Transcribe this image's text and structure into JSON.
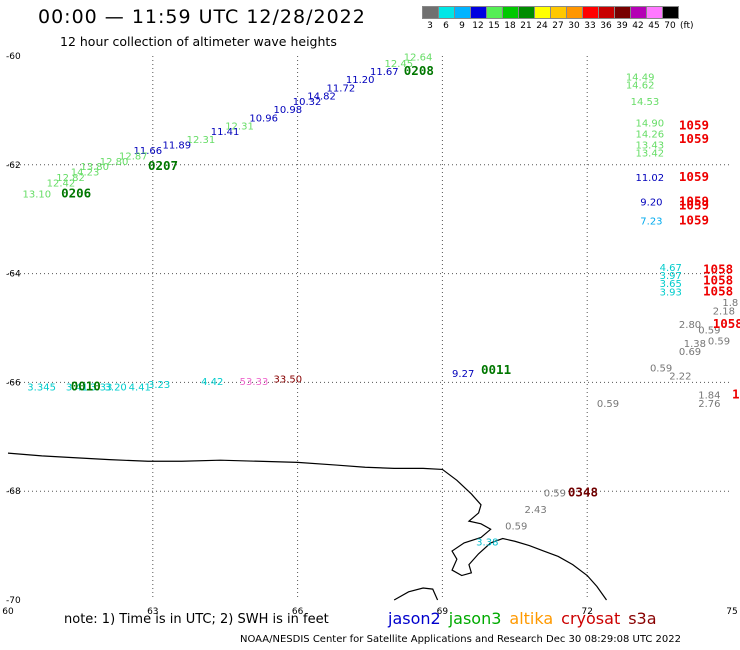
{
  "header": {
    "title": "00:00 — 11:59 UTC 12/28/2022",
    "subtitle": "12 hour collection of altimeter wave heights"
  },
  "colorbar": {
    "labels": [
      "3",
      "6",
      "9",
      "12",
      "15",
      "18",
      "21",
      "24",
      "27",
      "30",
      "33",
      "36",
      "39",
      "42",
      "45",
      "70"
    ],
    "unit": "(ft)",
    "colors": [
      "#707070",
      "#00e6e6",
      "#00b4ff",
      "#0000e0",
      "#55ee55",
      "#00c800",
      "#008c00",
      "#ffff00",
      "#ffc800",
      "#ff9600",
      "#ff0000",
      "#c80000",
      "#780000",
      "#b400b4",
      "#ff78ff",
      "#000000"
    ]
  },
  "map": {
    "lon_ticks": [
      "60",
      "63",
      "66",
      "69",
      "72",
      "75"
    ],
    "lat_ticks": [
      "-60",
      "-62",
      "-64",
      "-66",
      "-68",
      "-70"
    ],
    "lon_range": [
      60,
      75
    ],
    "lat_range": [
      -60,
      -70
    ],
    "colors": {
      "grid": "#555555",
      "coast": "#000000"
    }
  },
  "tracks": [
    {
      "id": "0206",
      "label": "0206",
      "color": "#007700",
      "lon": 61.1,
      "lat": -62.6
    },
    {
      "id": "0207",
      "label": "0207",
      "color": "#007700",
      "lon": 62.9,
      "lat": -62.1
    },
    {
      "id": "0208",
      "label": "0208",
      "color": "#007700",
      "lon": 68.2,
      "lat": -60.35
    },
    {
      "id": "0010",
      "label": "0010",
      "color": "#007700",
      "lon": 61.3,
      "lat": -66.15
    },
    {
      "id": "0011",
      "label": "0011",
      "color": "#007700",
      "lon": 69.8,
      "lat": -65.85
    },
    {
      "id": "0348",
      "label": "0348",
      "color": "#700000",
      "lon": 71.6,
      "lat": -68.1
    },
    {
      "id": "1059a",
      "label": "1059",
      "color": "#ee0000",
      "lon": 73.9,
      "lat": -61.35
    },
    {
      "id": "1059b",
      "label": "1059",
      "color": "#ee0000",
      "lon": 73.9,
      "lat": -61.6
    },
    {
      "id": "1059c",
      "label": "1059",
      "color": "#ee0000",
      "lon": 73.9,
      "lat": -62.3
    },
    {
      "id": "1059d",
      "label": "1059",
      "color": "#ee0000",
      "lon": 73.9,
      "lat": -62.75
    },
    {
      "id": "1059e",
      "label": "1059",
      "color": "#ee0000",
      "lon": 73.9,
      "lat": -62.82
    },
    {
      "id": "1059f",
      "label": "1059",
      "color": "#ee0000",
      "lon": 73.9,
      "lat": -63.1
    },
    {
      "id": "1058a",
      "label": "1058",
      "color": "#ee0000",
      "lon": 74.4,
      "lat": -64.0
    },
    {
      "id": "1058b",
      "label": "1058",
      "color": "#ee0000",
      "lon": 74.4,
      "lat": -64.2
    },
    {
      "id": "1058c",
      "label": "1058",
      "color": "#ee0000",
      "lon": 74.4,
      "lat": -64.4
    },
    {
      "id": "1058d",
      "label": "1058",
      "color": "#ee0000",
      "lon": 74.6,
      "lat": -65.0
    },
    {
      "id": "1058e",
      "label": "1",
      "color": "#ee0000",
      "lon": 75.0,
      "lat": -66.3
    }
  ],
  "measurements": [
    {
      "v": "12.64",
      "color": "#66dd66",
      "lon": 68.2,
      "lat": -60.08
    },
    {
      "v": "12.45",
      "color": "#66dd66",
      "lon": 67.8,
      "lat": -60.2
    },
    {
      "v": "11.67",
      "color": "#0000bb",
      "lon": 67.5,
      "lat": -60.35
    },
    {
      "v": "11.20",
      "color": "#0000bb",
      "lon": 67.0,
      "lat": -60.5
    },
    {
      "v": "11.72",
      "color": "#0000bb",
      "lon": 66.6,
      "lat": -60.65
    },
    {
      "v": "14.82",
      "color": "#0000bb",
      "lon": 66.2,
      "lat": -60.8
    },
    {
      "v": "10.32",
      "color": "#0000bb",
      "lon": 65.9,
      "lat": -60.9
    },
    {
      "v": "10.98",
      "color": "#0000bb",
      "lon": 65.5,
      "lat": -61.05
    },
    {
      "v": "10.96",
      "color": "#0000bb",
      "lon": 65.0,
      "lat": -61.2
    },
    {
      "v": "12.31",
      "color": "#66dd66",
      "lon": 64.5,
      "lat": -61.35
    },
    {
      "v": "11.41",
      "color": "#0000bb",
      "lon": 64.2,
      "lat": -61.45
    },
    {
      "v": "12.31",
      "color": "#66dd66",
      "lon": 63.7,
      "lat": -61.6
    },
    {
      "v": "11.89",
      "color": "#0000bb",
      "lon": 63.2,
      "lat": -61.7
    },
    {
      "v": "11.66",
      "color": "#0000bb",
      "lon": 62.6,
      "lat": -61.8
    },
    {
      "v": "12.87",
      "color": "#66dd66",
      "lon": 62.3,
      "lat": -61.9
    },
    {
      "v": "12.80",
      "color": "#66dd66",
      "lon": 61.9,
      "lat": -62.0
    },
    {
      "v": "13.80",
      "color": "#66dd66",
      "lon": 61.5,
      "lat": -62.1
    },
    {
      "v": "14.23",
      "color": "#66dd66",
      "lon": 61.3,
      "lat": -62.2
    },
    {
      "v": "12.82",
      "color": "#66dd66",
      "lon": 61.0,
      "lat": -62.3
    },
    {
      "v": "12.42",
      "color": "#66dd66",
      "lon": 60.8,
      "lat": -62.4
    },
    {
      "v": "13.10",
      "color": "#66dd66",
      "lon": 60.3,
      "lat": -62.6
    },
    {
      "v": "14.49",
      "color": "#66dd66",
      "lon": 72.8,
      "lat": -60.45
    },
    {
      "v": "14.62",
      "color": "#66dd66",
      "lon": 72.8,
      "lat": -60.6
    },
    {
      "v": "14.53",
      "color": "#66dd66",
      "lon": 72.9,
      "lat": -60.9
    },
    {
      "v": "14.90",
      "color": "#66dd66",
      "lon": 73.0,
      "lat": -61.3
    },
    {
      "v": "14.26",
      "color": "#66dd66",
      "lon": 73.0,
      "lat": -61.5
    },
    {
      "v": "13.43",
      "color": "#66dd66",
      "lon": 73.0,
      "lat": -61.7
    },
    {
      "v": "13.42",
      "color": "#66dd66",
      "lon": 73.0,
      "lat": -61.85
    },
    {
      "v": "11.02",
      "color": "#0000bb",
      "lon": 73.0,
      "lat": -62.3
    },
    {
      "v": "9.20",
      "color": "#0000bb",
      "lon": 73.1,
      "lat": -62.75
    },
    {
      "v": "7.23",
      "color": "#00aaee",
      "lon": 73.1,
      "lat": -63.1
    },
    {
      "v": "4.67",
      "color": "#00cccc",
      "lon": 73.5,
      "lat": -63.95
    },
    {
      "v": "3.97",
      "color": "#00cccc",
      "lon": 73.5,
      "lat": -64.1
    },
    {
      "v": "3.65",
      "color": "#00cccc",
      "lon": 73.5,
      "lat": -64.25
    },
    {
      "v": "3.93",
      "color": "#00cccc",
      "lon": 73.5,
      "lat": -64.4
    },
    {
      "v": "2.18",
      "color": "#777777",
      "lon": 74.6,
      "lat": -64.75
    },
    {
      "v": "1.8",
      "color": "#777777",
      "lon": 74.8,
      "lat": -64.6
    },
    {
      "v": "2.80",
      "color": "#777777",
      "lon": 73.9,
      "lat": -65.0
    },
    {
      "v": "0.59",
      "color": "#777777",
      "lon": 74.3,
      "lat": -65.1
    },
    {
      "v": "1.38",
      "color": "#777777",
      "lon": 74.0,
      "lat": -65.35
    },
    {
      "v": "0.69",
      "color": "#777777",
      "lon": 73.9,
      "lat": -65.5
    },
    {
      "v": "0.59",
      "color": "#777777",
      "lon": 74.5,
      "lat": -65.3
    },
    {
      "v": "2.22",
      "color": "#777777",
      "lon": 73.7,
      "lat": -65.95
    },
    {
      "v": "0.59",
      "color": "#777777",
      "lon": 73.3,
      "lat": -65.8
    },
    {
      "v": "1.84",
      "color": "#777777",
      "lon": 74.3,
      "lat": -66.3
    },
    {
      "v": "2.76",
      "color": "#777777",
      "lon": 74.3,
      "lat": -66.45
    },
    {
      "v": "0.59",
      "color": "#777777",
      "lon": 72.2,
      "lat": -66.45
    },
    {
      "v": "9.27",
      "color": "#0000bb",
      "lon": 69.2,
      "lat": -65.9
    },
    {
      "v": "3.345",
      "color": "#00cccc",
      "lon": 60.4,
      "lat": -66.15
    },
    {
      "v": "3.41",
      "color": "#00cccc",
      "lon": 61.2,
      "lat": -66.15
    },
    {
      "v": "3.33",
      "color": "#00cccc",
      "lon": 61.7,
      "lat": -66.15
    },
    {
      "v": "3.20",
      "color": "#00cccc",
      "lon": 62.0,
      "lat": -66.15
    },
    {
      "v": "4.41",
      "color": "#00cccc",
      "lon": 62.5,
      "lat": -66.15
    },
    {
      "v": "3.23",
      "color": "#00cccc",
      "lon": 62.9,
      "lat": -66.1
    },
    {
      "v": "4.42",
      "color": "#00cccc",
      "lon": 64.0,
      "lat": -66.05
    },
    {
      "v": "53.33",
      "color": "#ee66cc",
      "lon": 64.8,
      "lat": -66.05
    },
    {
      "v": "33.50",
      "color": "#880000",
      "lon": 65.5,
      "lat": -66.0
    },
    {
      "v": "0.59",
      "color": "#777777",
      "lon": 71.1,
      "lat": -68.1
    },
    {
      "v": "2.43",
      "color": "#777777",
      "lon": 70.7,
      "lat": -68.4
    },
    {
      "v": "0.59",
      "color": "#777777",
      "lon": 70.3,
      "lat": -68.7
    },
    {
      "v": "3.38",
      "color": "#00bbcc",
      "lon": 69.7,
      "lat": -69.0
    }
  ],
  "note": "note:  1) Time is in UTC;  2) SWH is in feet",
  "legend": [
    {
      "name": "jason2",
      "color": "#0000cc"
    },
    {
      "name": "jason3",
      "color": "#00aa00"
    },
    {
      "name": "altika",
      "color": "#ff9900"
    },
    {
      "name": "cryosat",
      "color": "#cc0000"
    },
    {
      "name": "s3a",
      "color": "#880000"
    }
  ],
  "footer": "NOAA/NESDIS Center for Satellite Applications and Research     Dec 30 08:29:08 UTC 2022"
}
